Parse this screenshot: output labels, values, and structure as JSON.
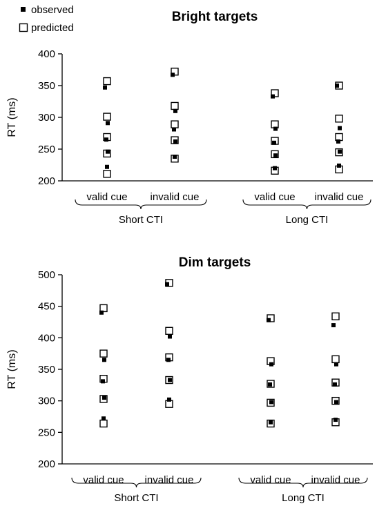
{
  "legend": {
    "observed_label": "observed",
    "predicted_label": "predicted"
  },
  "colors": {
    "observed": "#000000",
    "predicted": "#000000",
    "axis": "#000000"
  },
  "chart_data": [
    {
      "type": "scatter",
      "title": "Bright targets",
      "ylabel": "RT (ms)",
      "ylim": [
        200,
        400
      ],
      "yticks": [
        200,
        250,
        300,
        350,
        400
      ],
      "grid": false,
      "groups": [
        "Short CTI",
        "Long CTI"
      ],
      "categories": [
        "valid cue",
        "invalid cue",
        "valid cue",
        "invalid cue"
      ],
      "series": [
        {
          "name": "observed",
          "marker": "filled-square",
          "values": [
            [
              347,
              291,
              265,
              246,
              222
            ],
            [
              367,
              310,
              281,
              262,
              238
            ],
            [
              333,
              282,
              260,
              240,
              220
            ],
            [
              350,
              283,
              262,
              246,
              224
            ]
          ]
        },
        {
          "name": "predicted",
          "marker": "open-square",
          "values": [
            [
              357,
              301,
              269,
              243,
              211
            ],
            [
              372,
              318,
              289,
              264,
              235
            ],
            [
              338,
              289,
              263,
              242,
              216
            ],
            [
              350,
              298,
              269,
              245,
              218
            ]
          ]
        }
      ]
    },
    {
      "type": "scatter",
      "title": "Dim targets",
      "ylabel": "RT (ms)",
      "ylim": [
        200,
        500
      ],
      "yticks": [
        200,
        250,
        300,
        350,
        400,
        450,
        500
      ],
      "grid": false,
      "groups": [
        "Short CTI",
        "Long CTI"
      ],
      "categories": [
        "valid cue",
        "invalid cue",
        "valid cue",
        "invalid cue"
      ],
      "series": [
        {
          "name": "observed",
          "marker": "filled-square",
          "values": [
            [
              440,
              365,
              331,
              305,
              272
            ],
            [
              485,
              402,
              365,
              333,
              302
            ],
            [
              428,
              358,
              326,
              298,
              266
            ],
            [
              420,
              358,
              326,
              298,
              270
            ]
          ]
        },
        {
          "name": "predicted",
          "marker": "open-square",
          "values": [
            [
              447,
              375,
              335,
              303,
              264
            ],
            [
              487,
              411,
              369,
              333,
              295
            ],
            [
              431,
              363,
              327,
              297,
              264
            ],
            [
              434,
              366,
              329,
              300,
              266
            ]
          ]
        }
      ]
    }
  ]
}
